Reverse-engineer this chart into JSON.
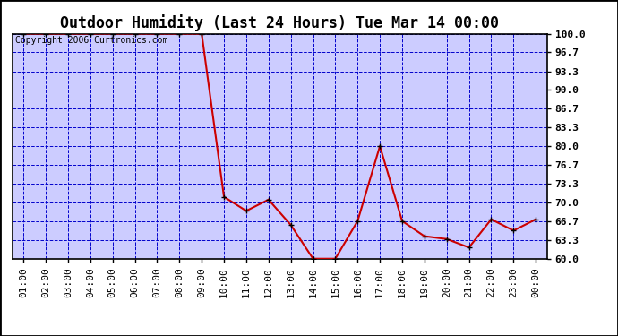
{
  "title": "Outdoor Humidity (Last 24 Hours) Tue Mar 14 00:00",
  "copyright": "Copyright 2006 Curtronics.com",
  "x_labels": [
    "01:00",
    "02:00",
    "03:00",
    "04:00",
    "05:00",
    "06:00",
    "07:00",
    "08:00",
    "09:00",
    "10:00",
    "11:00",
    "12:00",
    "13:00",
    "14:00",
    "15:00",
    "16:00",
    "17:00",
    "18:00",
    "19:00",
    "20:00",
    "21:00",
    "22:00",
    "23:00",
    "00:00"
  ],
  "x_values": [
    1,
    2,
    3,
    4,
    5,
    6,
    7,
    8,
    9,
    10,
    11,
    12,
    13,
    14,
    15,
    16,
    17,
    18,
    19,
    20,
    21,
    22,
    23,
    24
  ],
  "y_values": [
    100,
    100,
    100,
    100,
    100,
    100,
    100,
    100,
    100,
    71,
    68.5,
    70.5,
    66,
    60,
    60,
    66.7,
    80,
    66.7,
    64,
    63.5,
    62,
    67,
    65,
    67
  ],
  "ylim": [
    60.0,
    100.0
  ],
  "yticks": [
    60.0,
    63.3,
    66.7,
    70.0,
    73.3,
    76.7,
    80.0,
    83.3,
    86.7,
    90.0,
    93.3,
    96.7,
    100.0
  ],
  "line_color": "#cc0000",
  "marker_color": "#000000",
  "fig_bg_color": "#ffffff",
  "plot_bg_color": "#ccccff",
  "grid_color": "#0000cc",
  "title_color": "#000000",
  "title_fontsize": 12,
  "axis_label_fontsize": 8,
  "copyright_fontsize": 7
}
